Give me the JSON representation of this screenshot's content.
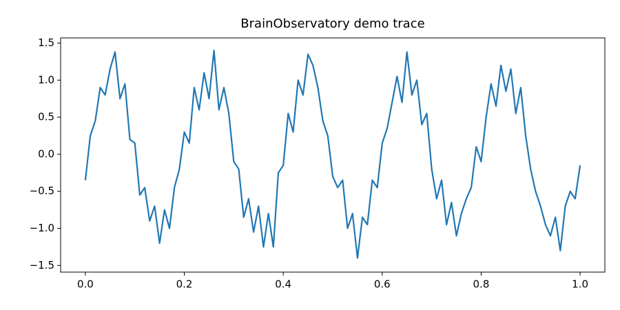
{
  "chart_data": {
    "type": "line",
    "title": "BrainObservatory demo trace",
    "x": [
      0,
      0.01,
      0.02,
      0.03,
      0.04,
      0.05,
      0.06,
      0.07,
      0.08,
      0.09,
      0.1,
      0.11,
      0.12,
      0.13,
      0.14,
      0.15,
      0.16,
      0.17,
      0.18,
      0.19,
      0.2,
      0.21,
      0.22,
      0.23,
      0.24,
      0.25,
      0.26,
      0.27,
      0.28,
      0.29,
      0.3,
      0.31,
      0.32,
      0.33,
      0.34,
      0.35,
      0.36,
      0.37,
      0.38,
      0.39,
      0.4,
      0.41,
      0.42,
      0.43,
      0.44,
      0.45,
      0.46,
      0.47,
      0.48,
      0.49,
      0.5,
      0.51,
      0.52,
      0.53,
      0.54,
      0.55,
      0.56,
      0.57,
      0.58,
      0.59,
      0.6,
      0.61,
      0.62,
      0.63,
      0.64,
      0.65,
      0.66,
      0.67,
      0.68,
      0.69,
      0.7,
      0.71,
      0.72,
      0.73,
      0.74,
      0.75,
      0.76,
      0.77,
      0.78,
      0.79,
      0.8,
      0.81,
      0.82,
      0.83,
      0.84,
      0.85,
      0.86,
      0.87,
      0.88,
      0.89,
      0.9,
      0.91,
      0.92,
      0.93,
      0.94,
      0.95,
      0.96,
      0.97,
      0.98,
      0.99,
      1.0
    ],
    "values": [
      -0.35,
      0.25,
      0.45,
      0.9,
      0.8,
      1.15,
      1.38,
      0.75,
      0.95,
      0.2,
      0.15,
      -0.55,
      -0.45,
      -0.9,
      -0.7,
      -1.2,
      -0.75,
      -1.0,
      -0.45,
      -0.2,
      0.3,
      0.15,
      0.9,
      0.6,
      1.1,
      0.75,
      1.4,
      0.6,
      0.9,
      0.55,
      -0.1,
      -0.2,
      -0.85,
      -0.6,
      -1.05,
      -0.7,
      -1.25,
      -0.8,
      -1.25,
      -0.25,
      -0.15,
      0.55,
      0.3,
      1.0,
      0.8,
      1.35,
      1.2,
      0.9,
      0.45,
      0.25,
      -0.3,
      -0.45,
      -0.35,
      -1.0,
      -0.8,
      -1.4,
      -0.85,
      -0.95,
      -0.35,
      -0.45,
      0.15,
      0.35,
      0.7,
      1.05,
      0.7,
      1.38,
      0.8,
      1.0,
      0.4,
      0.55,
      -0.2,
      -0.6,
      -0.35,
      -0.95,
      -0.65,
      -1.1,
      -0.8,
      -0.6,
      -0.45,
      0.1,
      -0.1,
      0.5,
      0.95,
      0.65,
      1.2,
      0.85,
      1.15,
      0.55,
      0.9,
      0.25,
      -0.2,
      -0.5,
      -0.7,
      -0.95,
      -1.1,
      -0.85,
      -1.3,
      -0.7,
      -0.5,
      -0.6,
      -0.15
    ],
    "color": "#1f77b4",
    "xlim": [
      -0.05,
      1.05
    ],
    "ylim": [
      -1.59,
      1.57
    ],
    "xticks": [
      {
        "value": 0,
        "label": "0.0"
      },
      {
        "value": 0.2,
        "label": "0.2"
      },
      {
        "value": 0.4,
        "label": "0.4"
      },
      {
        "value": 0.6,
        "label": "0.6"
      },
      {
        "value": 0.8,
        "label": "0.8"
      },
      {
        "value": 1.0,
        "label": "1.0"
      }
    ],
    "yticks": [
      {
        "value": -1.5,
        "label": "−1.5"
      },
      {
        "value": -1.0,
        "label": "−1.0"
      },
      {
        "value": -0.5,
        "label": "−0.5"
      },
      {
        "value": 0,
        "label": "0.0"
      },
      {
        "value": 0.5,
        "label": "0.5"
      },
      {
        "value": 1.0,
        "label": "1.0"
      },
      {
        "value": 1.5,
        "label": "1.5"
      }
    ],
    "grid": false
  }
}
